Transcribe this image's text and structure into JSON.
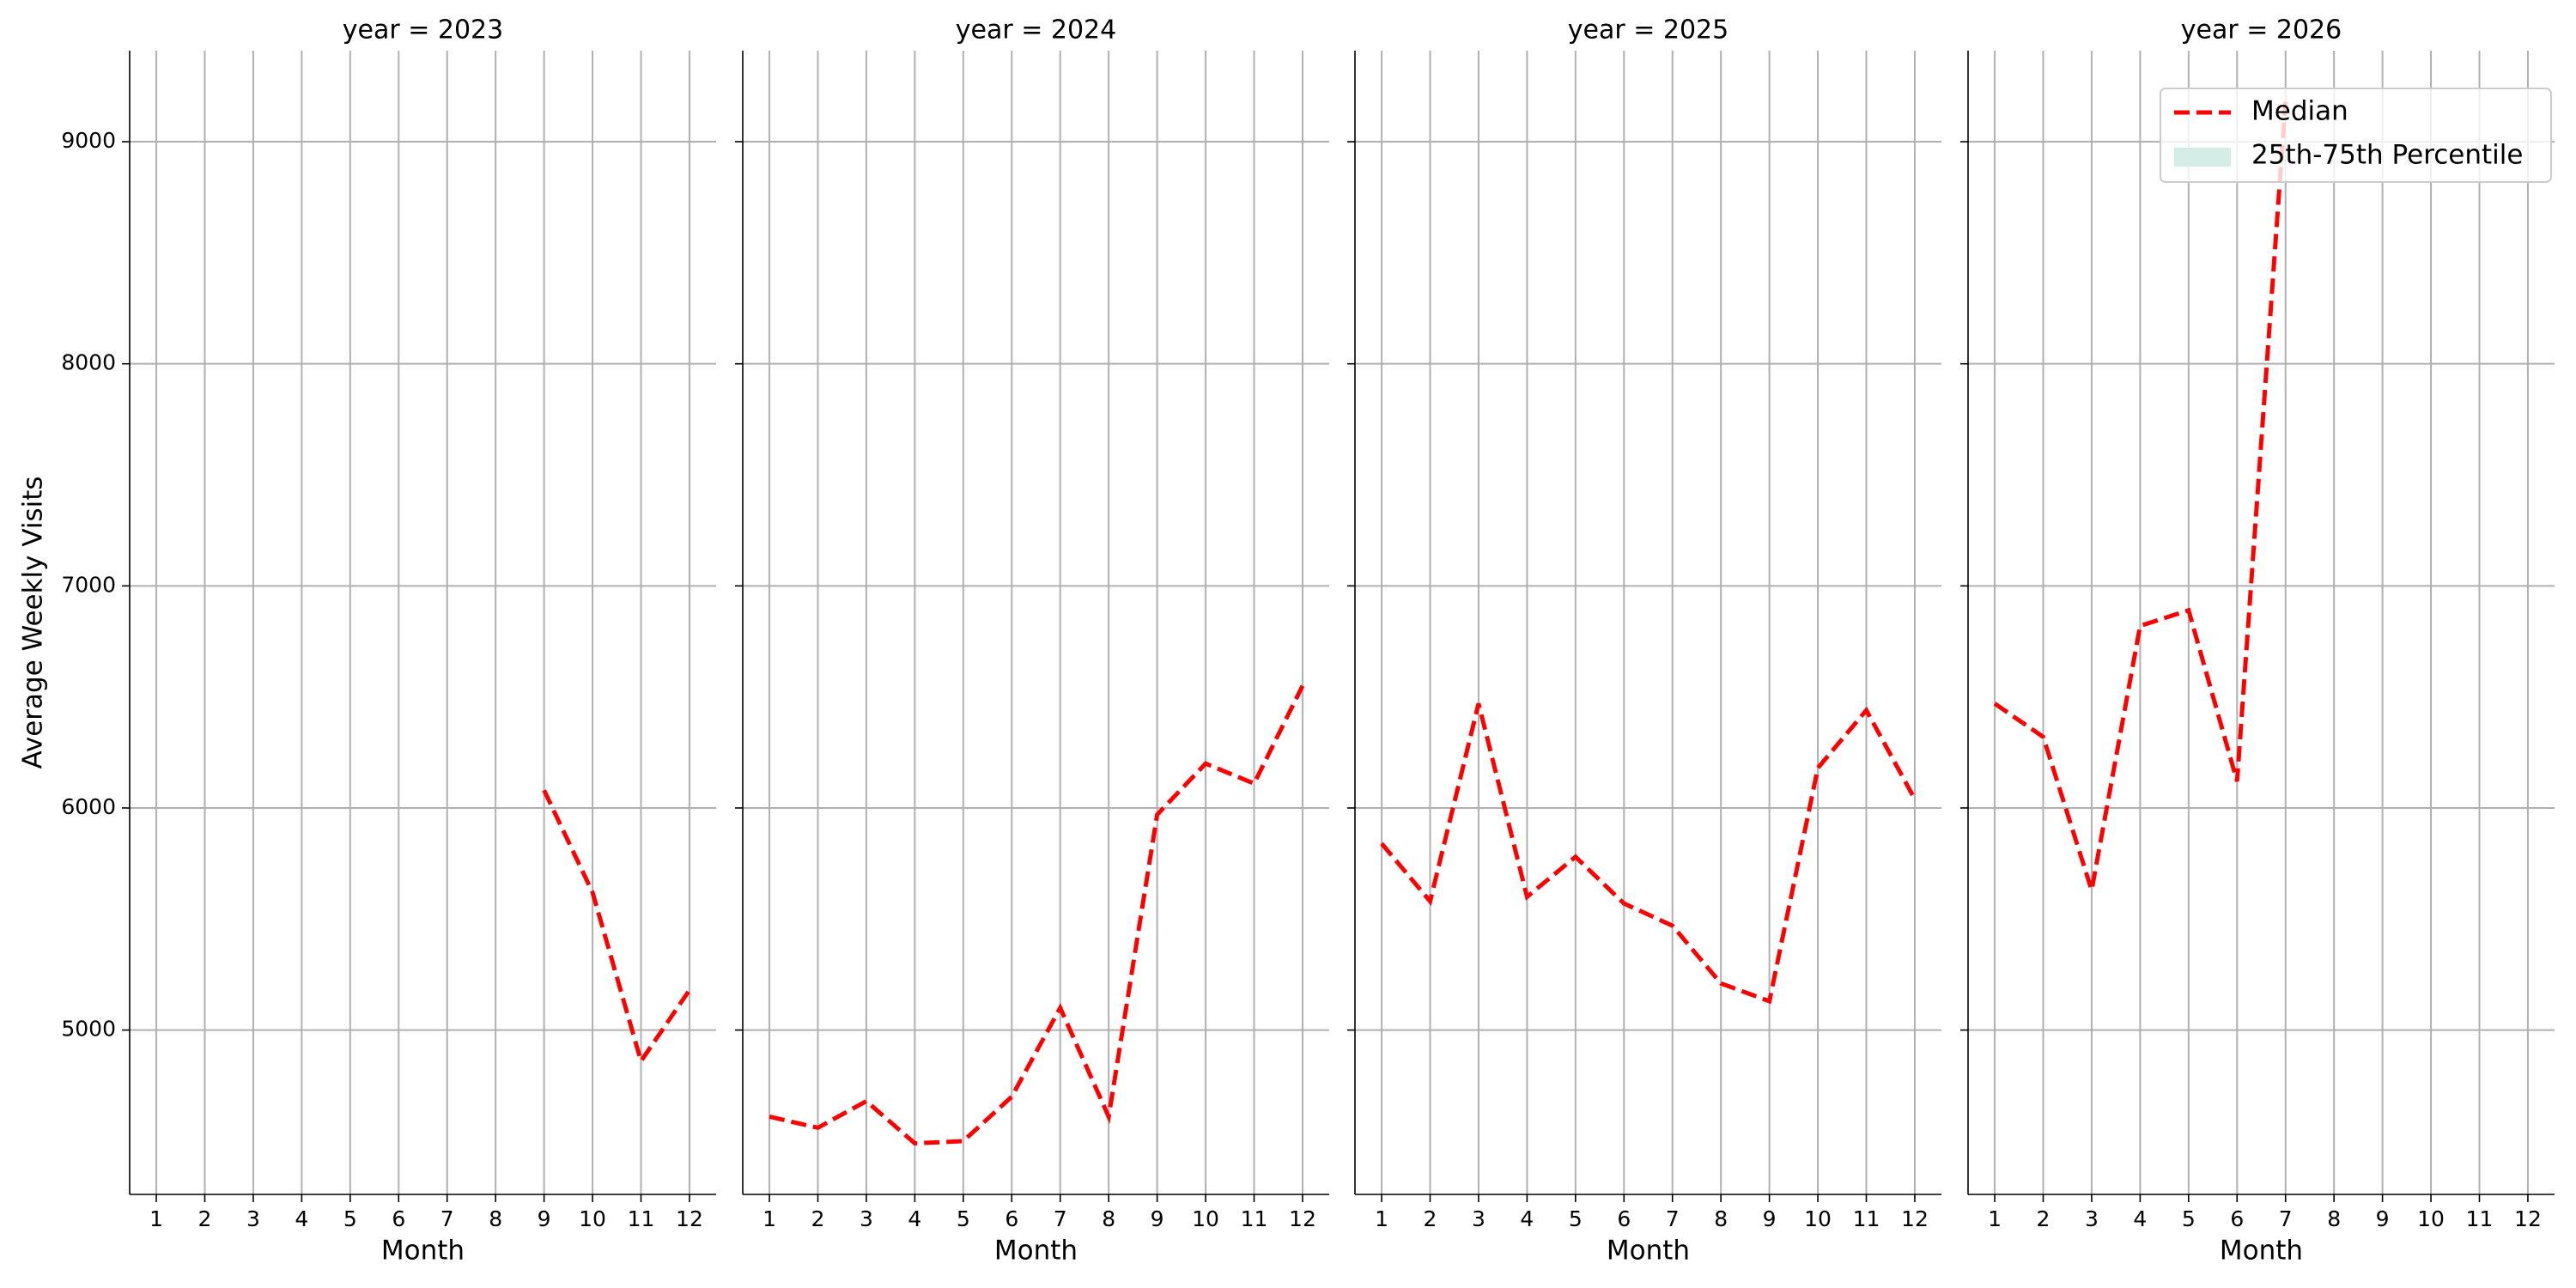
{
  "chart_data": {
    "type": "line",
    "ylabel": "Average Weekly Visits",
    "xlabel": "Month",
    "x": [
      1,
      2,
      3,
      4,
      5,
      6,
      7,
      8,
      9,
      10,
      11,
      12
    ],
    "xlim": [
      0.45,
      12.55
    ],
    "xticks": [
      1,
      2,
      3,
      4,
      5,
      6,
      7,
      8,
      9,
      10,
      11,
      12
    ],
    "ylim": [
      4260,
      9410
    ],
    "yticks": [
      5000,
      6000,
      7000,
      8000,
      9000
    ],
    "grid": true,
    "legend_loc": "upper right",
    "legend": [
      {
        "name": "Median",
        "color": "#ff0000",
        "style": "dashed"
      },
      {
        "name": "25th-75th Percentile",
        "color": "#d4ede6",
        "style": "patch"
      }
    ],
    "panels": [
      {
        "title": "year = 2023",
        "values": [
          null,
          null,
          null,
          null,
          null,
          null,
          null,
          null,
          6080,
          5620,
          4860,
          5180
        ]
      },
      {
        "title": "year = 2024",
        "values": [
          4610,
          4560,
          4680,
          4490,
          4500,
          4700,
          5100,
          4610,
          5970,
          6200,
          6110,
          6550
        ]
      },
      {
        "title": "year = 2025",
        "values": [
          5840,
          5580,
          6470,
          5600,
          5780,
          5570,
          5470,
          5210,
          5130,
          6180,
          6440,
          6040
        ]
      },
      {
        "title": "year = 2026",
        "values": [
          6470,
          6320,
          5630,
          6820,
          6890,
          6120,
          9180,
          null,
          null,
          null,
          null,
          null
        ]
      }
    ]
  }
}
